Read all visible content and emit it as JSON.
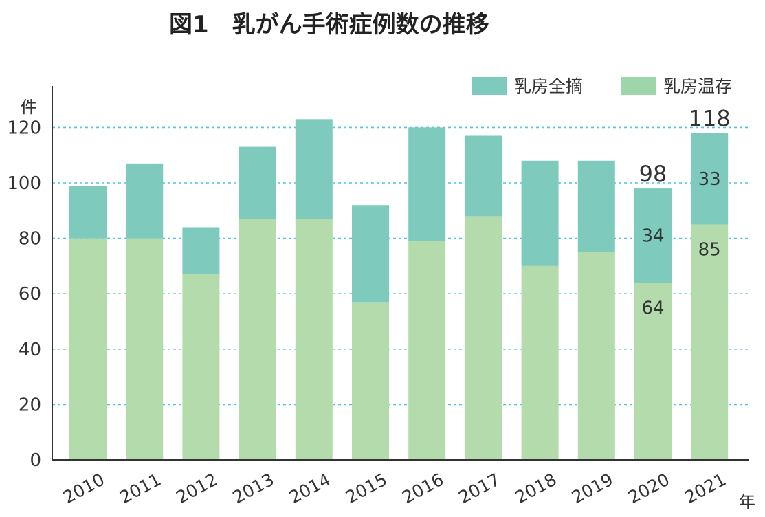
{
  "title": "図1　乳がん手術症例数の推移",
  "chart_data": {
    "type": "bar",
    "stacked": true,
    "categories": [
      "2010",
      "2011",
      "2012",
      "2013",
      "2014",
      "2015",
      "2016",
      "2017",
      "2018",
      "2019",
      "2020",
      "2021"
    ],
    "series": [
      {
        "name": "乳房温存",
        "color": "#b3dbab",
        "legend_color": "#9dd6a8",
        "values": [
          80,
          80,
          67,
          87,
          87,
          57,
          79,
          88,
          70,
          75,
          64,
          85
        ]
      },
      {
        "name": "乳房全摘",
        "color": "#7ecbbd",
        "values": [
          19,
          27,
          17,
          26,
          36,
          35,
          41,
          29,
          38,
          33,
          34,
          33
        ]
      }
    ],
    "ylabel_unit": "件",
    "xlabel_unit": "年",
    "ylim": [
      0,
      130
    ],
    "yticks": [
      0,
      20,
      40,
      60,
      80,
      100,
      120
    ],
    "grid": "horizontal dotted",
    "gridline_color": "#4fc3e0",
    "legend": "top-right",
    "data_labels": [
      {
        "category": "2020",
        "series": "乳房全摘",
        "text": "34"
      },
      {
        "category": "2020",
        "series": "乳房温存",
        "text": "64"
      },
      {
        "category": "2021",
        "series": "乳房全摘",
        "text": "33"
      },
      {
        "category": "2021",
        "series": "乳房温存",
        "text": "85"
      }
    ],
    "total_labels": [
      {
        "category": "2020",
        "text": "98"
      },
      {
        "category": "2021",
        "text": "118"
      }
    ]
  }
}
